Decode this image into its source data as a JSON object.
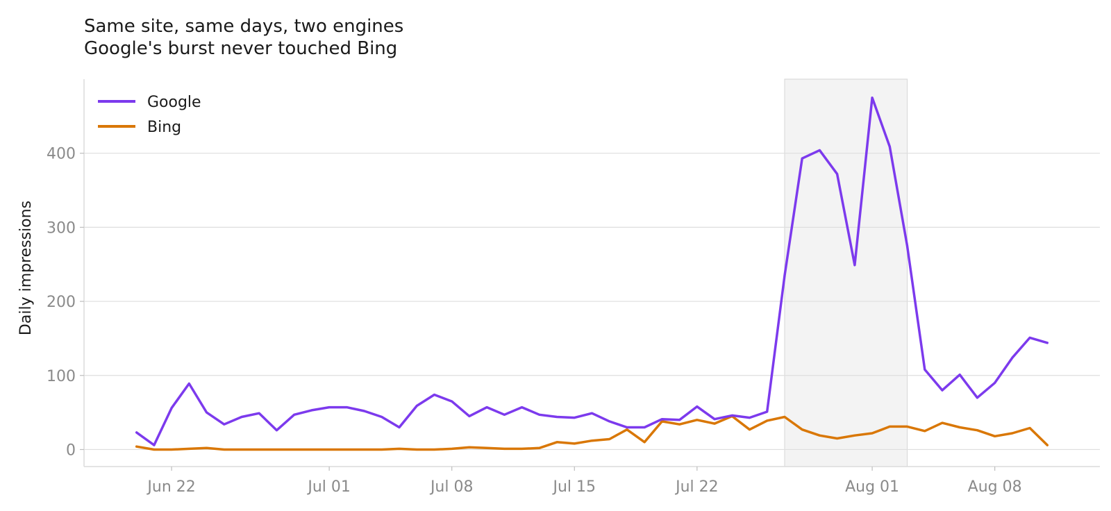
{
  "chart_data": {
    "type": "line",
    "title": "Same site, same days, two engines",
    "subtitle": "Google's burst never touched Bing",
    "xlabel": "",
    "ylabel": "Daily impressions",
    "x_start": "2024-06-20",
    "xlim": [
      "2024-06-17",
      "2024-08-14"
    ],
    "ylim": [
      -23,
      500
    ],
    "x_ticks": [
      {
        "date": "2024-06-22",
        "label": "Jun 22"
      },
      {
        "date": "2024-07-01",
        "label": "Jul 01"
      },
      {
        "date": "2024-07-08",
        "label": "Jul 08"
      },
      {
        "date": "2024-07-15",
        "label": "Jul 15"
      },
      {
        "date": "2024-07-22",
        "label": "Jul 22"
      },
      {
        "date": "2024-08-01",
        "label": "Aug 01"
      },
      {
        "date": "2024-08-08",
        "label": "Aug 08"
      }
    ],
    "y_ticks": [
      0,
      100,
      200,
      300,
      400
    ],
    "grid": "y",
    "legend_position": "top-left",
    "highlight_range": [
      "2024-07-27",
      "2024-08-03"
    ],
    "series": [
      {
        "name": "Google",
        "color": "#7c3aed",
        "values": [
          23,
          6,
          56,
          89,
          50,
          34,
          44,
          49,
          26,
          47,
          53,
          57,
          57,
          52,
          44,
          30,
          59,
          74,
          65,
          45,
          57,
          47,
          57,
          47,
          44,
          43,
          49,
          38,
          30,
          30,
          41,
          40,
          58,
          41,
          46,
          43,
          51,
          235,
          393,
          404,
          372,
          249,
          475,
          409,
          275,
          108,
          80,
          101,
          70,
          90,
          124,
          151,
          144
        ]
      },
      {
        "name": "Bing",
        "color": "#d97706",
        "values": [
          4,
          0,
          0,
          1,
          2,
          0,
          0,
          0,
          0,
          0,
          0,
          0,
          0,
          0,
          0,
          1,
          0,
          0,
          1,
          3,
          2,
          1,
          1,
          2,
          10,
          8,
          12,
          14,
          27,
          10,
          38,
          34,
          40,
          35,
          45,
          27,
          39,
          44,
          27,
          19,
          15,
          19,
          22,
          31,
          31,
          25,
          36,
          30,
          26,
          18,
          22,
          29,
          6
        ]
      }
    ]
  }
}
